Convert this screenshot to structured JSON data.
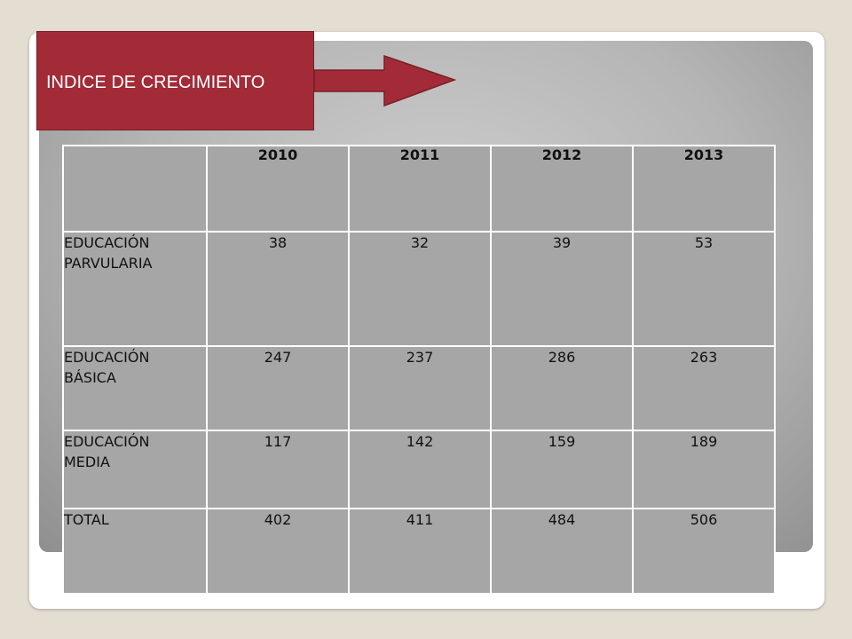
{
  "slide": {
    "title": "INDICE DE CRECIMIENTO",
    "colors": {
      "title_box": "#a32b37",
      "table_cell": "#a6a6a6",
      "background": "#e4ddd2"
    },
    "icon": "right-arrow-icon"
  },
  "table": {
    "corner": "",
    "years": [
      "2010",
      "2011",
      "2012",
      "2013"
    ],
    "rows": [
      {
        "label_line1": "EDUCACIÓN",
        "label_line2": "PARVULARIA",
        "values": [
          "38",
          "32",
          "39",
          "53"
        ]
      },
      {
        "label_line1": "EDUCACIÓN",
        "label_line2": "BÁSICA",
        "values": [
          "247",
          "237",
          "286",
          "263"
        ]
      },
      {
        "label_line1": "EDUCACIÓN",
        "label_line2": "MEDIA",
        "values": [
          "117",
          "142",
          "159",
          "189"
        ]
      },
      {
        "label_line1": "TOTAL",
        "label_line2": "",
        "values": [
          "402",
          "411",
          "484",
          "506"
        ]
      }
    ]
  }
}
